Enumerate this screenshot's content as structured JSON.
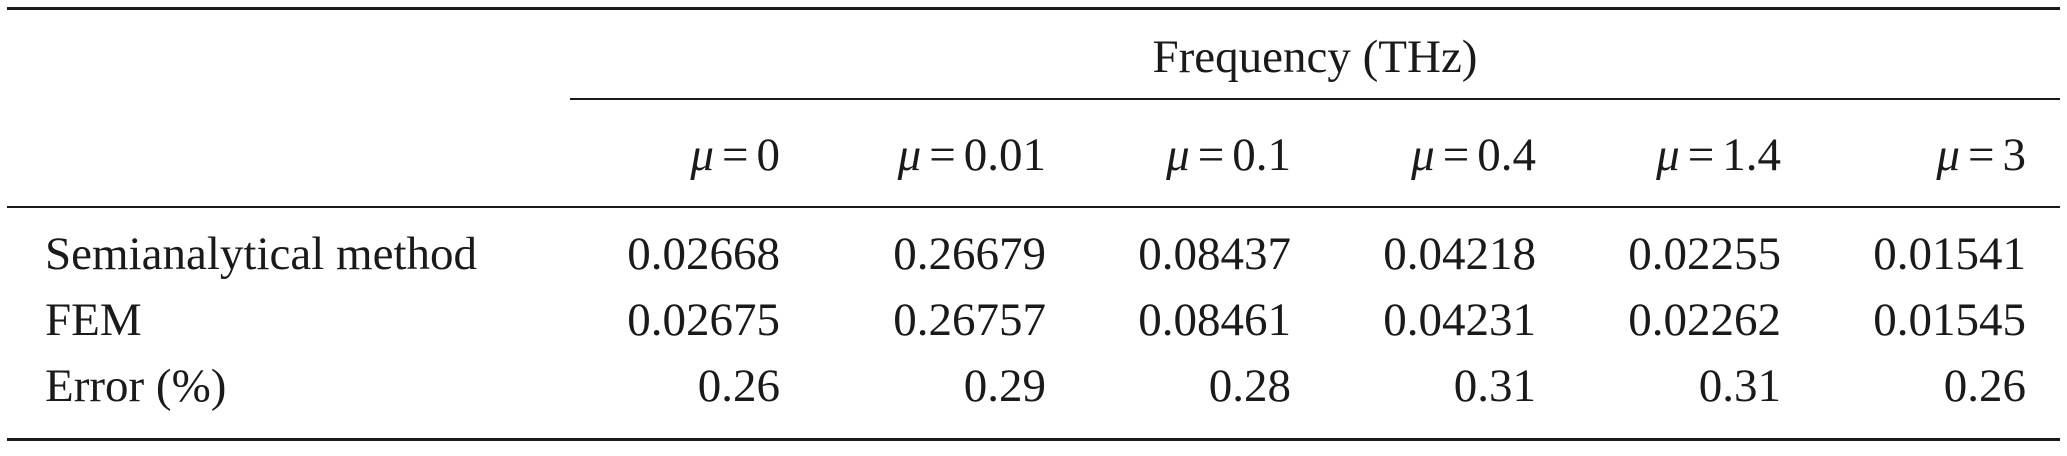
{
  "table": {
    "group_header": "Frequency (THz)",
    "columns": [
      {
        "symbol": "μ",
        "value": "0"
      },
      {
        "symbol": "μ",
        "value": "0.01"
      },
      {
        "symbol": "μ",
        "value": "0.1"
      },
      {
        "symbol": "μ",
        "value": "0.4"
      },
      {
        "symbol": "μ",
        "value": "1.4"
      },
      {
        "symbol": "μ",
        "value": "3"
      }
    ],
    "rows": [
      {
        "label": "Semianalytical method",
        "values": [
          "0.02668",
          "0.26679",
          "0.08437",
          "0.04218",
          "0.02255",
          "0.01541"
        ]
      },
      {
        "label": "FEM",
        "values": [
          "0.02675",
          "0.26757",
          "0.08461",
          "0.04231",
          "0.02262",
          "0.01545"
        ]
      },
      {
        "label": "Error (%)",
        "values": [
          "0.26",
          "0.29",
          "0.28",
          "0.31",
          "0.31",
          "0.26"
        ]
      }
    ]
  }
}
